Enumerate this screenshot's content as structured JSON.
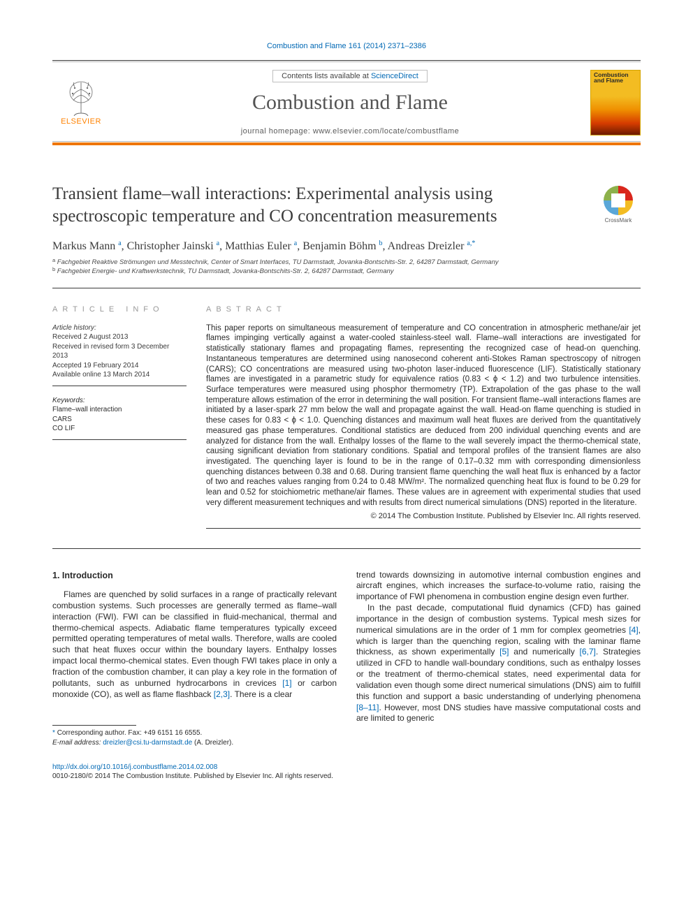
{
  "citation": "Combustion and Flame 161 (2014) 2371–2386",
  "masthead": {
    "contents_prefix": "Contents lists available at ",
    "contents_link": "ScienceDirect",
    "journal": "Combustion and Flame",
    "homepage_label": "journal homepage: ",
    "homepage_url": "www.elsevier.com/locate/combustflame",
    "publisher": "ELSEVIER",
    "cover_title": "Combustion and Flame"
  },
  "crossmark_label": "CrossMark",
  "title": "Transient flame–wall interactions: Experimental analysis using spectroscopic temperature and CO concentration measurements",
  "authors": [
    {
      "name": "Markus Mann",
      "aff": "a"
    },
    {
      "name": "Christopher Jainski",
      "aff": "a"
    },
    {
      "name": "Matthias Euler",
      "aff": "a"
    },
    {
      "name": "Benjamin Böhm",
      "aff": "b"
    },
    {
      "name": "Andreas Dreizler",
      "aff": "a",
      "corr": true
    }
  ],
  "affiliations": [
    {
      "label": "a",
      "text": "Fachgebiet Reaktive Strömungen und Messtechnik, Center of Smart Interfaces, TU Darmstadt, Jovanka-Bontschits-Str. 2, 64287 Darmstadt, Germany"
    },
    {
      "label": "b",
      "text": "Fachgebiet Energie- und Kraftwerkstechnik, TU Darmstadt, Jovanka-Bontschits-Str. 2, 64287 Darmstadt, Germany"
    }
  ],
  "info": {
    "heading": "ARTICLE INFO",
    "history_head": "Article history:",
    "history": [
      "Received 2 August 2013",
      "Received in revised form 3 December 2013",
      "Accepted 19 February 2014",
      "Available online 13 March 2014"
    ],
    "kw_head": "Keywords:",
    "keywords": [
      "Flame–wall interaction",
      "CARS",
      "CO LIF"
    ]
  },
  "abstract": {
    "heading": "ABSTRACT",
    "body": "This paper reports on simultaneous measurement of temperature and CO concentration in atmospheric methane/air jet flames impinging vertically against a water-cooled stainless-steel wall. Flame–wall interactions are investigated for statistically stationary flames and propagating flames, representing the recognized case of head-on quenching. Instantaneous temperatures are determined using nanosecond coherent anti-Stokes Raman spectroscopy of nitrogen (CARS); CO concentrations are measured using two-photon laser-induced fluorescence (LIF). Statistically stationary flames are investigated in a parametric study for equivalence ratios (0.83 < ϕ < 1.2) and two turbulence intensities. Surface temperatures were measured using phosphor thermometry (TP). Extrapolation of the gas phase to the wall temperature allows estimation of the error in determining the wall position. For transient flame–wall interactions flames are initiated by a laser-spark 27 mm below the wall and propagate against the wall. Head-on flame quenching is studied in these cases for 0.83 < ϕ < 1.0. Quenching distances and maximum wall heat fluxes are derived from the quantitatively measured gas phase temperatures. Conditional statistics are deduced from 200 individual quenching events and are analyzed for distance from the wall. Enthalpy losses of the flame to the wall severely impact the thermo-chemical state, causing significant deviation from stationary conditions. Spatial and temporal profiles of the transient flames are also investigated. The quenching layer is found to be in the range of 0.17–0.32 mm with corresponding dimensionless quenching distances between 0.38 and 0.68. During transient flame quenching the wall heat flux is enhanced by a factor of two and reaches values ranging from 0.24 to 0.48 MW/m². The normalized quenching heat flux is found to be 0.29 for lean and 0.52 for stoichiometric methane/air flames. These values are in agreement with experimental studies that used very different measurement techniques and with results from direct numerical simulations (DNS) reported in the literature.",
    "copyright": "© 2014 The Combustion Institute. Published by Elsevier Inc. All rights reserved."
  },
  "body": {
    "section_heading": "1. Introduction",
    "col1_p1": "Flames are quenched by solid surfaces in a range of practically relevant combustion systems. Such processes are generally termed as flame–wall interaction (FWI). FWI can be classified in fluid-mechanical, thermal and thermo-chemical aspects. Adiabatic flame temperatures typically exceed permitted operating temperatures of metal walls. Therefore, walls are cooled such that heat fluxes occur within the boundary layers. Enthalpy losses impact local thermo-chemical states. Even though FWI takes place in only a fraction of the combustion chamber, it can play a key role in the formation of pollutants, such as unburned hydrocarbons in crevices [1] or carbon monoxide (CO), as well as flame flashback [2,3]. There is a clear",
    "col2_top": "trend towards downsizing in automotive internal combustion engines and aircraft engines, which increases the surface-to-volume ratio, raising the importance of FWI phenomena in combustion engine design even further.",
    "col2_p2": "In the past decade, computational fluid dynamics (CFD) has gained importance in the design of combustion systems. Typical mesh sizes for numerical simulations are in the order of 1 mm for complex geometries [4], which is larger than the quenching region, scaling with the laminar flame thickness, as shown experimentally [5] and numerically [6,7]. Strategies utilized in CFD to handle wall-boundary conditions, such as enthalpy losses or the treatment of thermo-chemical states, need experimental data for validation even though some direct numerical simulations (DNS) aim to fulfill this function and support a basic understanding of underlying phenomena [8–11]. However, most DNS studies have massive computational costs and are limited to generic"
  },
  "corr": {
    "label": "Corresponding author. ",
    "fax": "Fax: +49 6151 16 6555.",
    "email_lbl": "E-mail address: ",
    "email": "dreizler@csi.tu-darmstadt.de",
    "email_sfx": " (A. Dreizler)."
  },
  "footer": {
    "doi": "http://dx.doi.org/10.1016/j.combustflame.2014.02.008",
    "issn_line": "0010-2180/© 2014 The Combustion Institute. Published by Elsevier Inc. All rights reserved."
  },
  "colors": {
    "link": "#0068b4",
    "accent": "#ef7600",
    "elsevier": "#ff8200",
    "cover": "#f3bc22"
  }
}
